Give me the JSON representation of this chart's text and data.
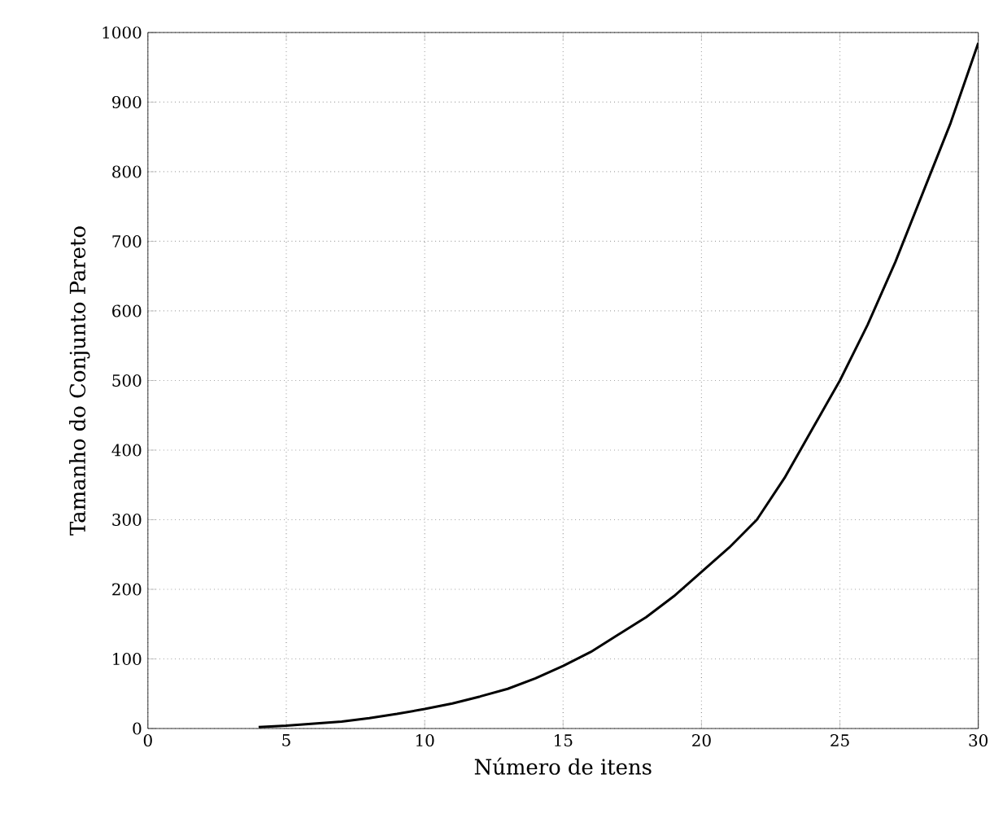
{
  "chart_data": {
    "type": "line",
    "xlabel": "Número de itens",
    "ylabel": "Tamanho do Conjunto Pareto",
    "x": [
      4,
      5,
      6,
      7,
      8,
      9,
      10,
      11,
      12,
      13,
      14,
      15,
      16,
      17,
      18,
      19,
      20,
      21,
      22,
      23,
      24,
      25,
      26,
      27,
      28,
      29,
      30
    ],
    "series": [
      {
        "color": "#000000",
        "values": [
          2,
          4,
          7,
          10,
          15,
          21,
          28,
          36,
          46,
          57,
          72,
          90,
          110,
          135,
          160,
          190,
          225,
          260,
          300,
          360,
          430,
          500,
          580,
          670,
          770,
          870,
          985
        ]
      }
    ],
    "xlim": [
      0,
      30
    ],
    "ylim": [
      0,
      1000
    ],
    "xticks": [
      0,
      5,
      10,
      15,
      20,
      25,
      30
    ],
    "yticks": [
      0,
      100,
      200,
      300,
      400,
      500,
      600,
      700,
      800,
      900,
      1000
    ],
    "grid": true,
    "marker": "none",
    "line_style": "solid"
  }
}
